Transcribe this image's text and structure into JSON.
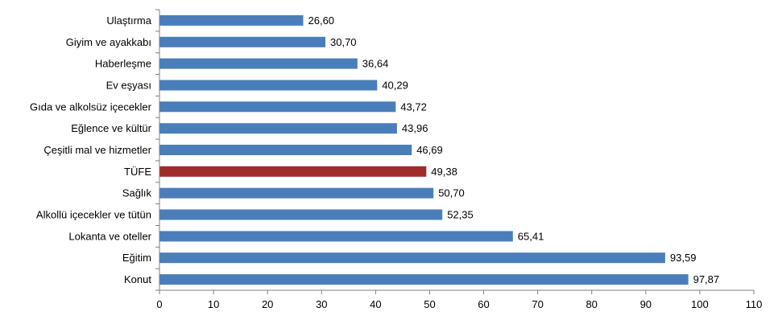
{
  "chart_data": {
    "type": "bar",
    "orientation": "horizontal",
    "title": "",
    "xlabel": "",
    "ylabel": "",
    "xlim": [
      0,
      110
    ],
    "x_ticks": [
      0,
      10,
      20,
      30,
      40,
      50,
      60,
      70,
      80,
      90,
      100,
      110
    ],
    "grid": false,
    "legend": "none",
    "categories": [
      "Ulaştırma",
      "Giyim ve ayakkabı",
      "Haberleşme",
      "Ev eşyası",
      "Gıda ve alkolsüz içecekler",
      "Eğlence ve kültür",
      "Çeşitli mal ve hizmetler",
      "TÜFE",
      "Sağlık",
      "Alkollü içecekler ve tütün",
      "Lokanta ve oteller",
      "Eğitim",
      "Konut"
    ],
    "values": [
      26.6,
      30.7,
      36.64,
      40.29,
      43.72,
      43.96,
      46.69,
      49.38,
      50.7,
      52.35,
      65.41,
      93.59,
      97.87
    ],
    "value_labels": [
      "26,60",
      "30,70",
      "36,64",
      "40,29",
      "43,72",
      "43,96",
      "46,69",
      "49,38",
      "50,70",
      "52,35",
      "65,41",
      "93,59",
      "97,87"
    ],
    "colors": {
      "default_bar": "#4a7ebb",
      "highlight_bar": "#a02b2b",
      "axis": "#808080"
    },
    "highlight_category": "TÜFE"
  }
}
